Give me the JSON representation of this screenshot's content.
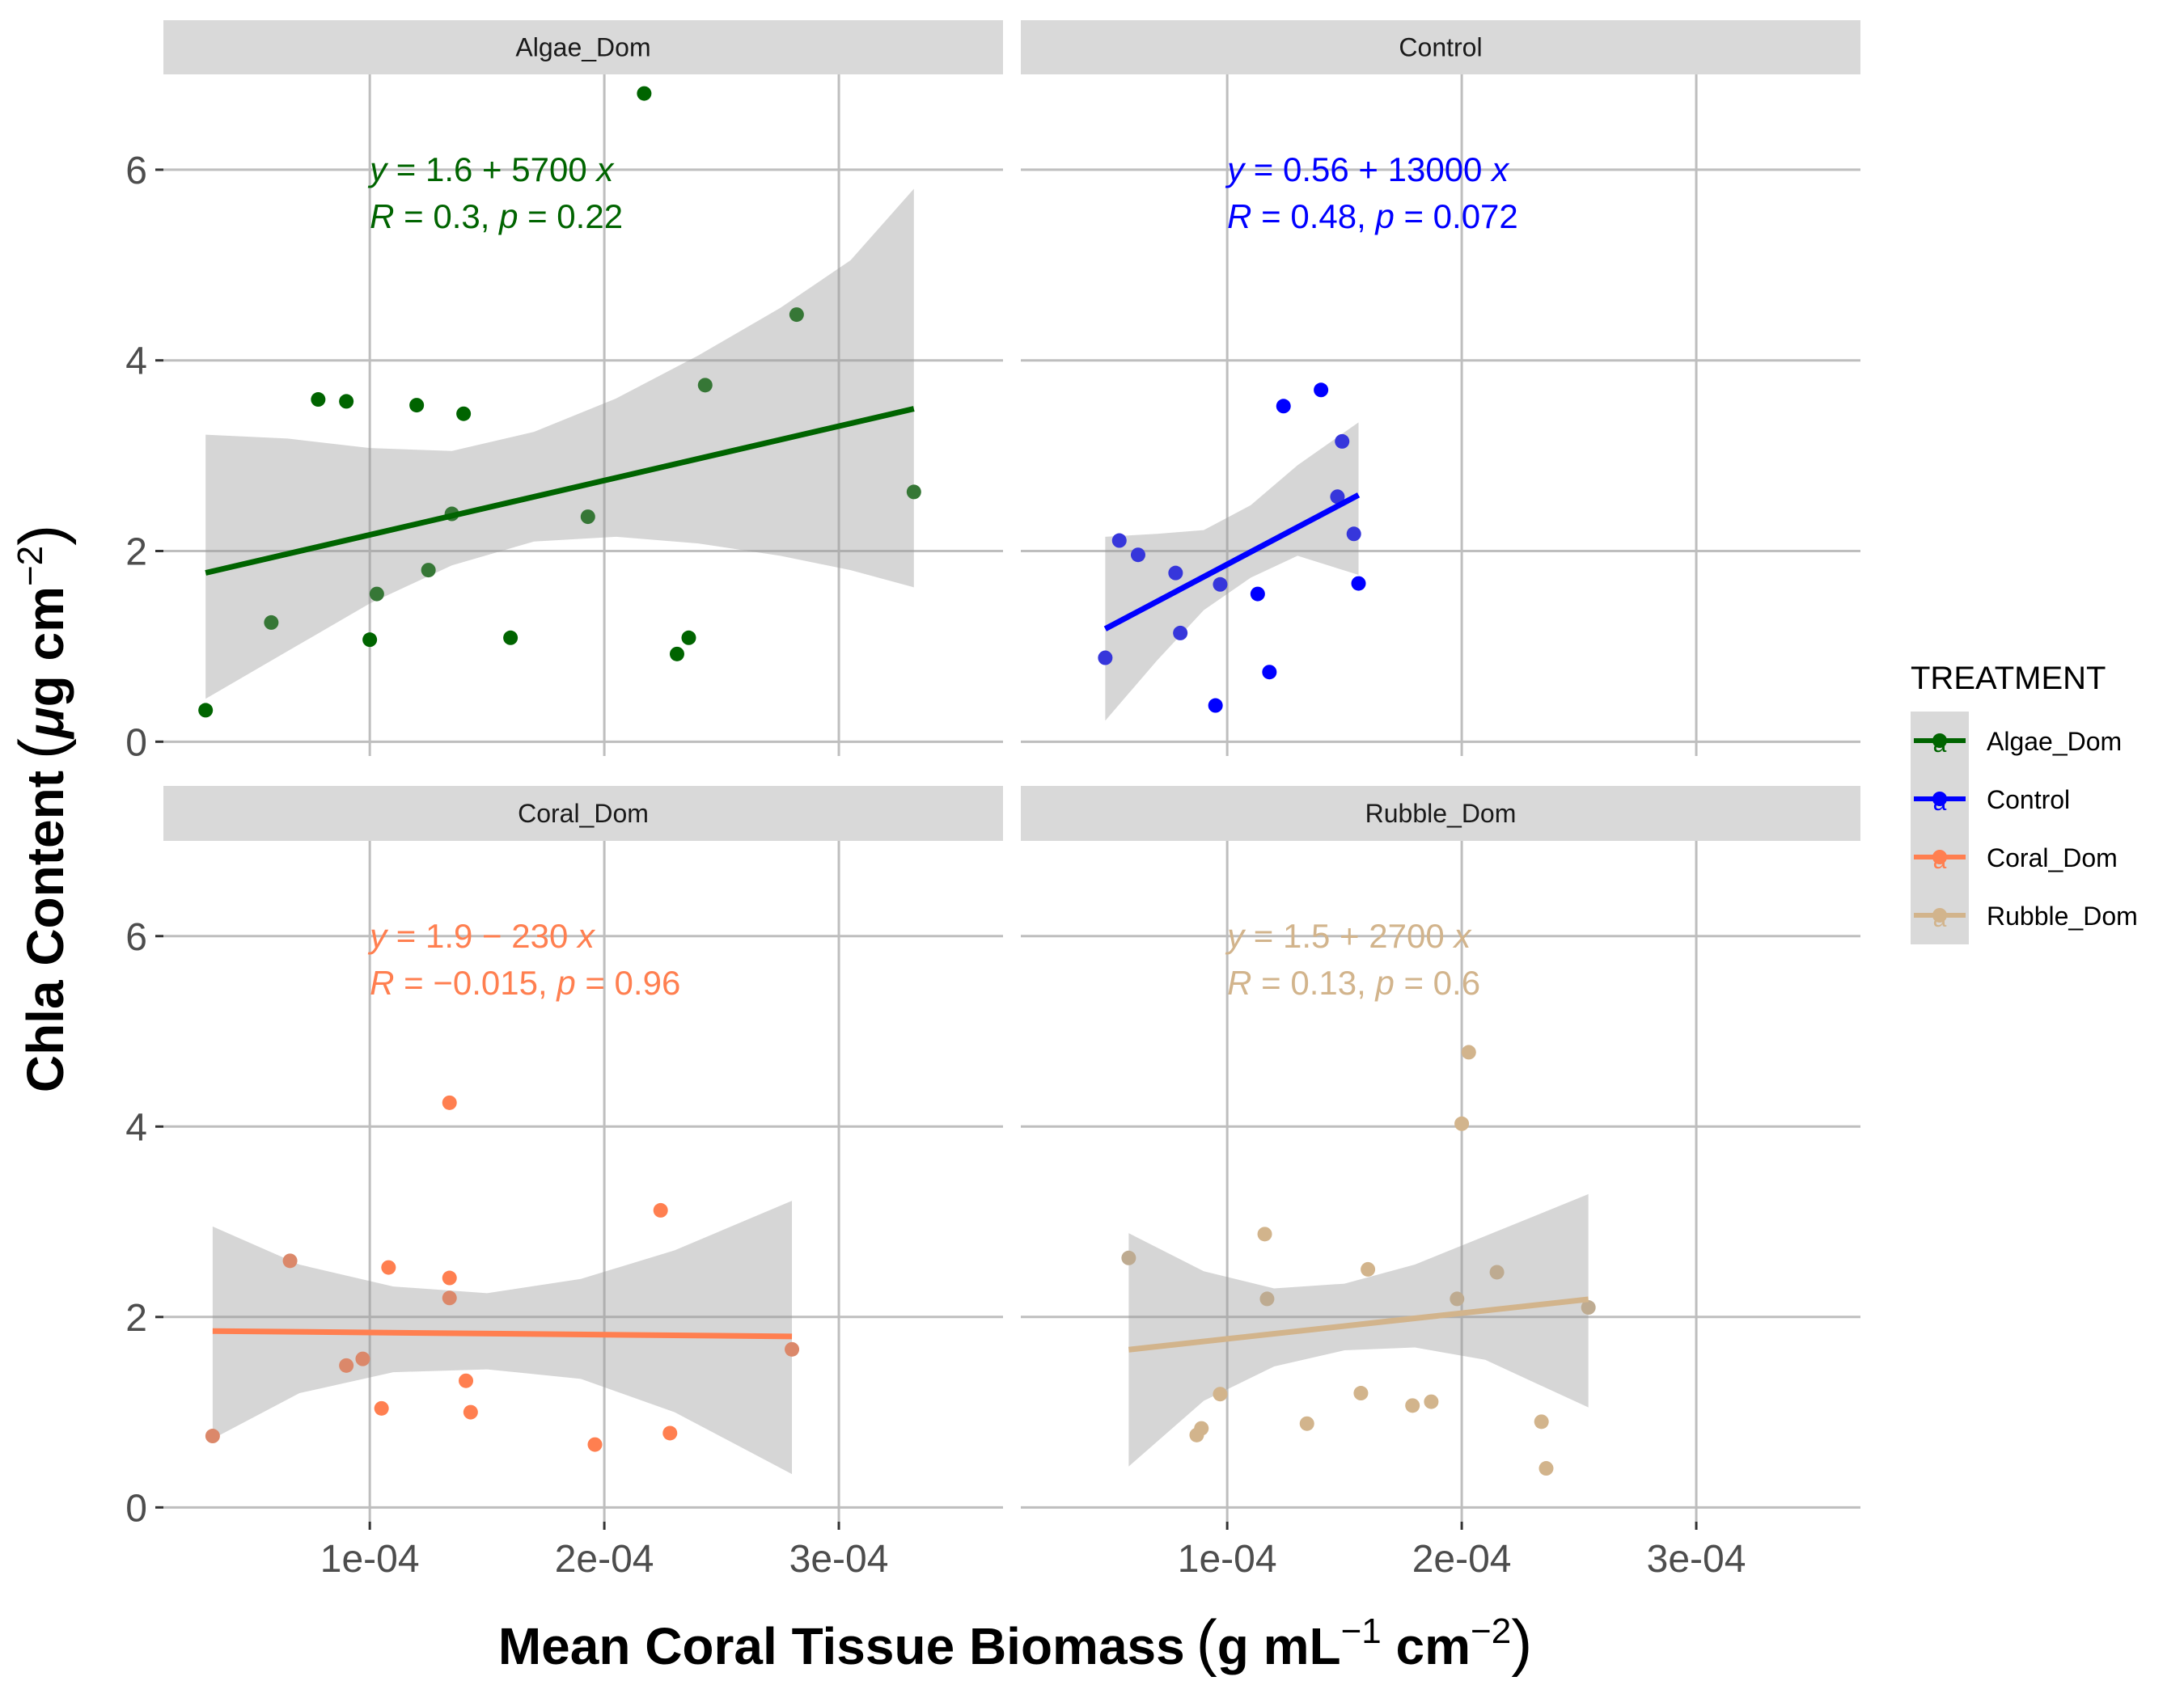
{
  "chart_data": {
    "type": "scatter",
    "facet_layout": "2x2",
    "xlabel_main": "Mean Coral Tissue Biomass",
    "xlabel_units": {
      "open": "(",
      "base1": "g mL",
      "sup1": "−1",
      "base2": " cm",
      "sup2": "−2",
      "close": ")"
    },
    "ylabel_main": "Chla Content",
    "ylabel_units": {
      "open": "(",
      "mu": "μ",
      "base": "g cm",
      "sup": "−2",
      "close": ")"
    },
    "xlim": [
      1.2e-05,
      0.00037
    ],
    "ylim": [
      -0.15,
      7.0
    ],
    "x_ticks": [
      0.0001,
      0.0002,
      0.0003
    ],
    "x_tick_labels": [
      "1e-04",
      "2e-04",
      "3e-04"
    ],
    "y_ticks": [
      0,
      2,
      4,
      6
    ],
    "y_tick_labels": [
      "0",
      "2",
      "4",
      "6"
    ],
    "grid": true,
    "legend": {
      "title": "TREATMENT",
      "position": "right",
      "key_glyph": "a",
      "items": [
        {
          "label": "Algae_Dom",
          "color": "#006400"
        },
        {
          "label": "Control",
          "color": "#0000ff"
        },
        {
          "label": "Coral_Dom",
          "color": "#ff7f50"
        },
        {
          "label": "Rubble_Dom",
          "color": "#d2b48c"
        }
      ]
    },
    "facets": [
      {
        "name": "Algae_Dom",
        "color": "#006400",
        "equation": {
          "y": "y",
          "eq": " = 1.6 + 5700 ",
          "x": "x"
        },
        "stats": {
          "R": "R",
          "r_val": " = 0.3, ",
          "p": "p",
          "p_val": " = 0.22"
        },
        "fit": {
          "x_start": 3e-05,
          "x_end": 0.000332,
          "intercept": 1.6,
          "slope": 5700
        },
        "band": [
          {
            "x": 3e-05,
            "lo": 0.45,
            "hi": 3.22
          },
          {
            "x": 6.5e-05,
            "lo": 0.95,
            "hi": 3.18
          },
          {
            "x": 0.0001,
            "lo": 1.45,
            "hi": 3.08
          },
          {
            "x": 0.000135,
            "lo": 1.85,
            "hi": 3.05
          },
          {
            "x": 0.00017,
            "lo": 2.1,
            "hi": 3.25
          },
          {
            "x": 0.000205,
            "lo": 2.15,
            "hi": 3.6
          },
          {
            "x": 0.00024,
            "lo": 2.08,
            "hi": 4.05
          },
          {
            "x": 0.000275,
            "lo": 1.95,
            "hi": 4.55
          },
          {
            "x": 0.000305,
            "lo": 1.8,
            "hi": 5.05
          },
          {
            "x": 0.000332,
            "lo": 1.62,
            "hi": 5.8
          }
        ],
        "points": [
          {
            "x": 3e-05,
            "y": 0.33
          },
          {
            "x": 5.8e-05,
            "y": 1.25
          },
          {
            "x": 7.8e-05,
            "y": 3.59
          },
          {
            "x": 9e-05,
            "y": 3.57
          },
          {
            "x": 0.0001,
            "y": 1.07
          },
          {
            "x": 0.000103,
            "y": 1.55
          },
          {
            "x": 0.00012,
            "y": 3.53
          },
          {
            "x": 0.000125,
            "y": 1.8
          },
          {
            "x": 0.000135,
            "y": 2.39
          },
          {
            "x": 0.00014,
            "y": 3.44
          },
          {
            "x": 0.00016,
            "y": 1.09
          },
          {
            "x": 0.000193,
            "y": 2.36
          },
          {
            "x": 0.000217,
            "y": 6.8
          },
          {
            "x": 0.000231,
            "y": 0.92
          },
          {
            "x": 0.000236,
            "y": 1.09
          },
          {
            "x": 0.000243,
            "y": 3.74
          },
          {
            "x": 0.000282,
            "y": 4.48
          },
          {
            "x": 0.000332,
            "y": 2.62
          }
        ]
      },
      {
        "name": "Control",
        "color": "#0000ff",
        "equation": {
          "y": "y",
          "eq": " = 0.56 + 13000 ",
          "x": "x"
        },
        "stats": {
          "R": "R",
          "r_val": " = 0.48, ",
          "p": "p",
          "p_val": " = 0.072"
        },
        "fit": {
          "x_start": 4.8e-05,
          "x_end": 0.000156,
          "intercept": 0.56,
          "slope": 13000
        },
        "band": [
          {
            "x": 4.8e-05,
            "lo": 0.22,
            "hi": 2.15
          },
          {
            "x": 7e-05,
            "lo": 0.85,
            "hi": 2.18
          },
          {
            "x": 9e-05,
            "lo": 1.38,
            "hi": 2.22
          },
          {
            "x": 0.00011,
            "lo": 1.72,
            "hi": 2.48
          },
          {
            "x": 0.00013,
            "lo": 1.95,
            "hi": 2.9
          },
          {
            "x": 0.000156,
            "lo": 1.75,
            "hi": 3.35
          }
        ],
        "points": [
          {
            "x": 4.8e-05,
            "y": 0.88
          },
          {
            "x": 5.4e-05,
            "y": 2.11
          },
          {
            "x": 6.2e-05,
            "y": 1.96
          },
          {
            "x": 7.8e-05,
            "y": 1.77
          },
          {
            "x": 8e-05,
            "y": 1.14
          },
          {
            "x": 9.5e-05,
            "y": 0.38
          },
          {
            "x": 9.7e-05,
            "y": 1.65
          },
          {
            "x": 0.000113,
            "y": 1.55
          },
          {
            "x": 0.000118,
            "y": 0.73
          },
          {
            "x": 0.000124,
            "y": 3.52
          },
          {
            "x": 0.00014,
            "y": 3.69
          },
          {
            "x": 0.000147,
            "y": 2.57
          },
          {
            "x": 0.000149,
            "y": 3.15
          },
          {
            "x": 0.000154,
            "y": 2.18
          },
          {
            "x": 0.000156,
            "y": 1.66
          }
        ]
      },
      {
        "name": "Coral_Dom",
        "color": "#ff7f50",
        "equation": {
          "y": "y",
          "eq": " = 1.9 − 230 ",
          "x": "x"
        },
        "stats": {
          "R": "R",
          "r_val": " = −0.015, ",
          "p": "p",
          "p_val": " = 0.96"
        },
        "fit": {
          "x_start": 3.3e-05,
          "x_end": 0.00028,
          "intercept": 1.86,
          "slope": -230
        },
        "band": [
          {
            "x": 3.3e-05,
            "lo": 0.72,
            "hi": 2.95
          },
          {
            "x": 7e-05,
            "lo": 1.2,
            "hi": 2.55
          },
          {
            "x": 0.00011,
            "lo": 1.42,
            "hi": 2.32
          },
          {
            "x": 0.00015,
            "lo": 1.45,
            "hi": 2.25
          },
          {
            "x": 0.00019,
            "lo": 1.35,
            "hi": 2.4
          },
          {
            "x": 0.00023,
            "lo": 1.0,
            "hi": 2.7
          },
          {
            "x": 0.00028,
            "lo": 0.35,
            "hi": 3.22
          }
        ],
        "points": [
          {
            "x": 3.3e-05,
            "y": 0.75
          },
          {
            "x": 6.6e-05,
            "y": 2.59
          },
          {
            "x": 9e-05,
            "y": 1.49
          },
          {
            "x": 9.7e-05,
            "y": 1.56
          },
          {
            "x": 0.000105,
            "y": 1.04
          },
          {
            "x": 0.000108,
            "y": 2.52
          },
          {
            "x": 0.000134,
            "y": 4.25
          },
          {
            "x": 0.000134,
            "y": 2.41
          },
          {
            "x": 0.000134,
            "y": 2.2
          },
          {
            "x": 0.000141,
            "y": 1.33
          },
          {
            "x": 0.000143,
            "y": 1.0
          },
          {
            "x": 0.000196,
            "y": 0.66
          },
          {
            "x": 0.000224,
            "y": 3.12
          },
          {
            "x": 0.000228,
            "y": 0.78
          },
          {
            "x": 0.00028,
            "y": 1.66
          }
        ]
      },
      {
        "name": "Rubble_Dom",
        "color": "#d2b48c",
        "equation": {
          "y": "y",
          "eq": " = 1.5 + 2700 ",
          "x": "x"
        },
        "stats": {
          "R": "R",
          "r_val": " = 0.13, ",
          "p": "p",
          "p_val": " = 0.6"
        },
        "fit": {
          "x_start": 5.8e-05,
          "x_end": 0.000254,
          "intercept": 1.5,
          "slope": 2700
        },
        "band": [
          {
            "x": 5.8e-05,
            "lo": 0.43,
            "hi": 2.88
          },
          {
            "x": 9e-05,
            "lo": 1.12,
            "hi": 2.48
          },
          {
            "x": 0.00012,
            "lo": 1.48,
            "hi": 2.3
          },
          {
            "x": 0.00015,
            "lo": 1.65,
            "hi": 2.35
          },
          {
            "x": 0.00018,
            "lo": 1.68,
            "hi": 2.55
          },
          {
            "x": 0.00021,
            "lo": 1.55,
            "hi": 2.85
          },
          {
            "x": 0.000254,
            "lo": 1.05,
            "hi": 3.29
          }
        ],
        "points": [
          {
            "x": 5.8e-05,
            "y": 2.62
          },
          {
            "x": 8.7e-05,
            "y": 0.76
          },
          {
            "x": 8.9e-05,
            "y": 0.83
          },
          {
            "x": 9.7e-05,
            "y": 1.19
          },
          {
            "x": 0.000116,
            "y": 2.87
          },
          {
            "x": 0.000117,
            "y": 2.19
          },
          {
            "x": 0.000134,
            "y": 0.88
          },
          {
            "x": 0.000157,
            "y": 1.2
          },
          {
            "x": 0.00016,
            "y": 2.5
          },
          {
            "x": 0.000179,
            "y": 1.07
          },
          {
            "x": 0.000187,
            "y": 1.11
          },
          {
            "x": 0.000198,
            "y": 2.19
          },
          {
            "x": 0.0002,
            "y": 4.03
          },
          {
            "x": 0.000203,
            "y": 4.78
          },
          {
            "x": 0.000215,
            "y": 2.47
          },
          {
            "x": 0.000234,
            "y": 0.9
          },
          {
            "x": 0.000236,
            "y": 0.41
          },
          {
            "x": 0.000254,
            "y": 2.1
          }
        ]
      }
    ]
  }
}
